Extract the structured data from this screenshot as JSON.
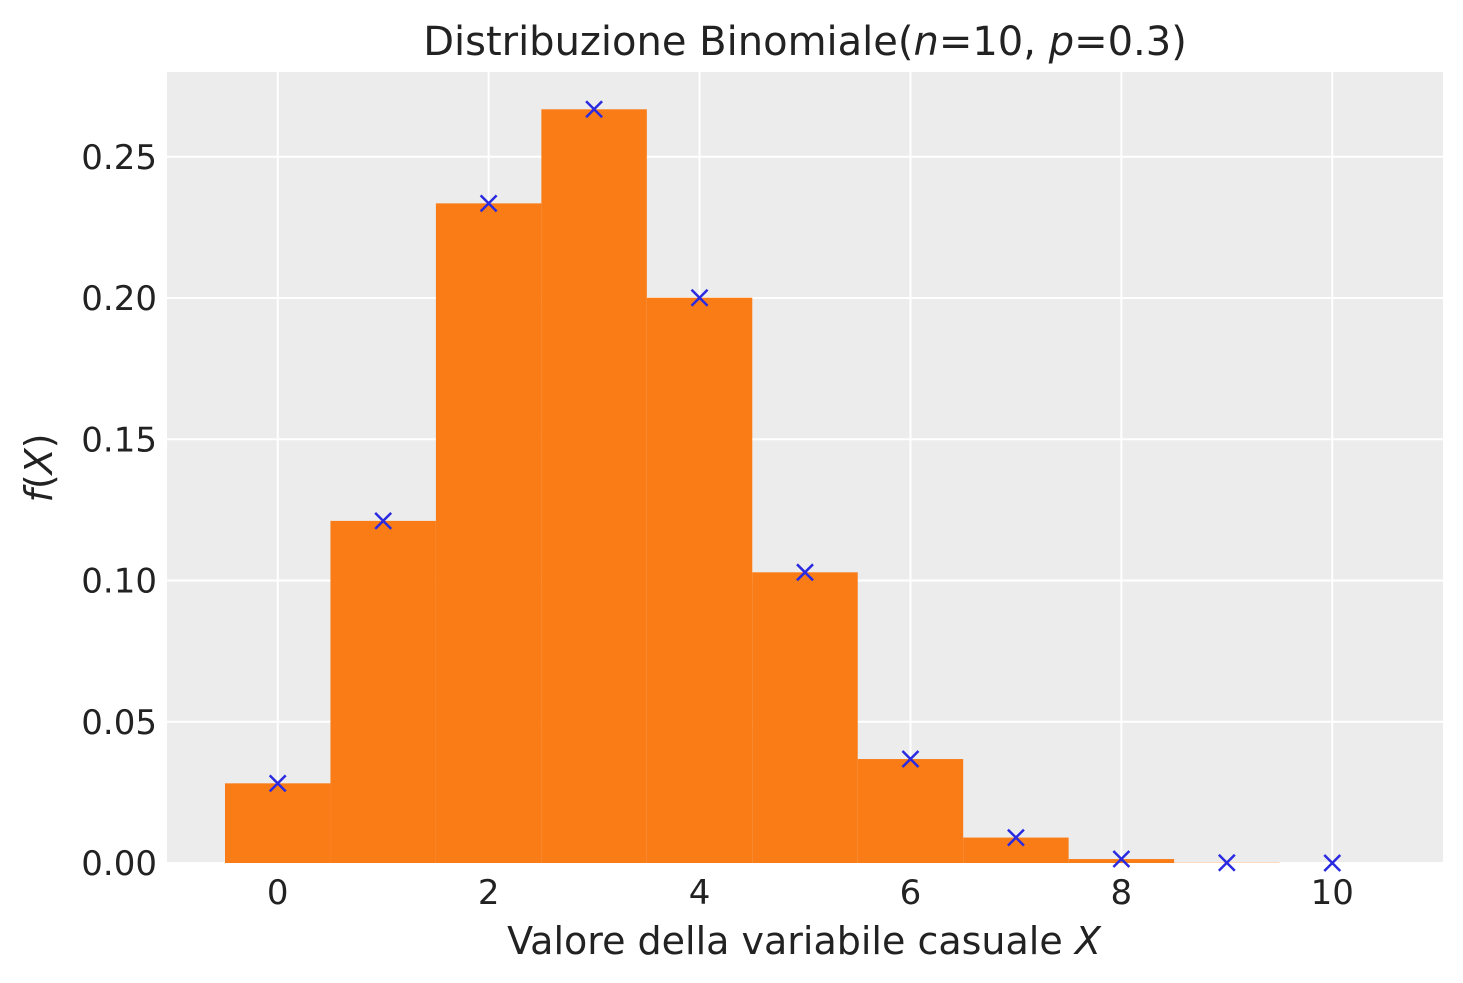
{
  "chart_data": {
    "type": "bar",
    "title": {
      "prefix": "Distribuzione Binomiale(",
      "n_symbol": "n",
      "n_text": "=10, ",
      "p_symbol": "p",
      "p_text": "=0.3)"
    },
    "xlabel": {
      "text": "Valore della variabile casuale ",
      "symbol": "X"
    },
    "ylabel": {
      "func": "f",
      "open": "(",
      "symbol": "X",
      "close": ")"
    },
    "xlim": [
      -1.05,
      11.05
    ],
    "ylim": [
      0,
      0.28
    ],
    "xticks": [
      0,
      2,
      4,
      6,
      8,
      10
    ],
    "xtick_labels": [
      "0",
      "2",
      "4",
      "6",
      "8",
      "10"
    ],
    "yticks": [
      0.0,
      0.05,
      0.1,
      0.15,
      0.2,
      0.25
    ],
    "ytick_labels": [
      "0.00",
      "0.05",
      "0.10",
      "0.15",
      "0.20",
      "0.25"
    ],
    "grid": true,
    "categories": [
      0,
      1,
      2,
      3,
      4,
      5,
      6,
      7,
      8,
      9,
      10
    ],
    "series": [
      {
        "kind": "bar",
        "values": [
          0.0282,
          0.1211,
          0.2335,
          0.2668,
          0.2001,
          0.1029,
          0.0368,
          0.009,
          0.0014,
          0.0001,
          0.0
        ],
        "color": "#f97c17"
      },
      {
        "kind": "marker-x",
        "values": [
          0.0282,
          0.1211,
          0.2335,
          0.2668,
          0.2001,
          0.1029,
          0.0368,
          0.009,
          0.0014,
          0.0001,
          0.0
        ],
        "color": "#2a2ae0"
      }
    ],
    "background": "#ececec",
    "grid_color": "#ffffff"
  }
}
